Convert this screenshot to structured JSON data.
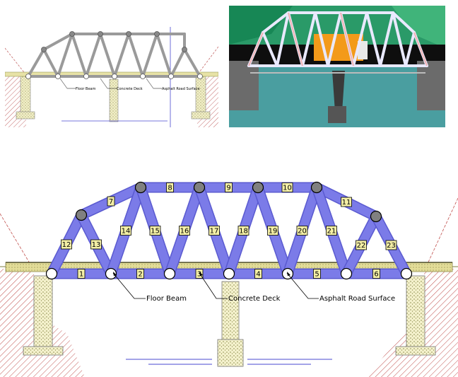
{
  "callouts": {
    "floor_beam": "Floor Beam",
    "concrete_deck": "Concrete Deck",
    "asphalt_road": "Asphalt Road Surface"
  },
  "member_labels": [
    "1",
    "2",
    "3",
    "4",
    "5",
    "6",
    "7",
    "8",
    "9",
    "10",
    "11",
    "12",
    "13",
    "14",
    "15",
    "16",
    "17",
    "18",
    "19",
    "20",
    "21",
    "22",
    "23"
  ],
  "colors": {
    "member": "#7b7be8",
    "member_outline": "#5a5ad0",
    "deck": "#d8d38a",
    "label_bg": "#f4efa6",
    "hatch": "#c0504d",
    "water": "#4a9ea0",
    "sky": "#1e8f62"
  }
}
